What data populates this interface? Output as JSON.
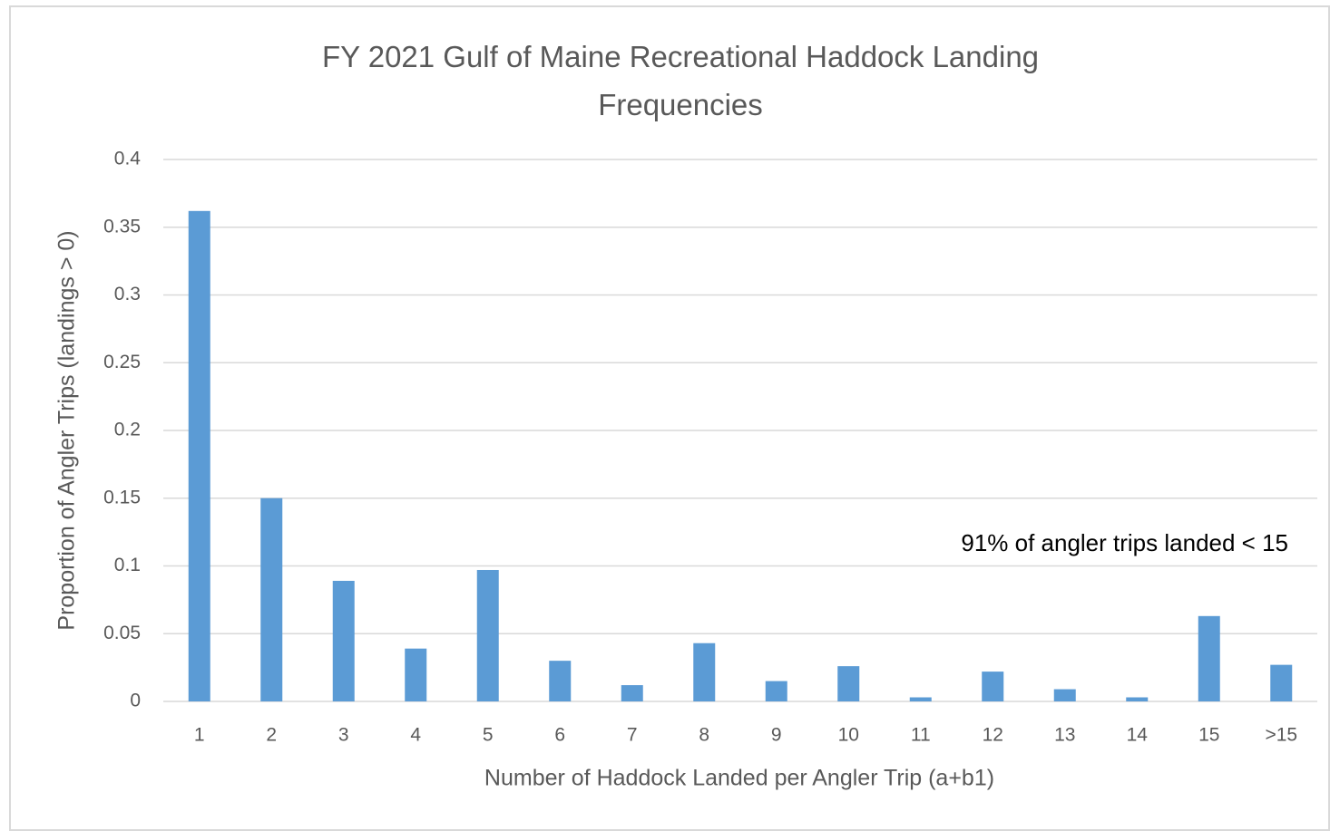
{
  "chart_data": {
    "type": "bar",
    "title": "FY 2021 Gulf of Maine Recreational Haddock Landing Frequencies",
    "x_label": "Number of Haddock Landed per Angler Trip (a+b1)",
    "y_label": "Proportion of Angler Trips (landings > 0)",
    "annotation": "91% of angler trips landed < 15",
    "categories": [
      "1",
      "2",
      "3",
      "4",
      "5",
      "6",
      "7",
      "8",
      "9",
      "10",
      "11",
      "12",
      "13",
      "14",
      "15",
      ">15"
    ],
    "values": [
      0.362,
      0.15,
      0.089,
      0.039,
      0.097,
      0.03,
      0.012,
      0.043,
      0.015,
      0.026,
      0.003,
      0.022,
      0.009,
      0.003,
      0.063,
      0.027
    ],
    "color": "#5b9bd5",
    "ylim": [
      0,
      0.4
    ],
    "yticks": [
      0,
      0.05,
      0.1,
      0.15,
      0.2,
      0.25,
      0.3,
      0.35,
      0.4
    ],
    "grid": true
  }
}
